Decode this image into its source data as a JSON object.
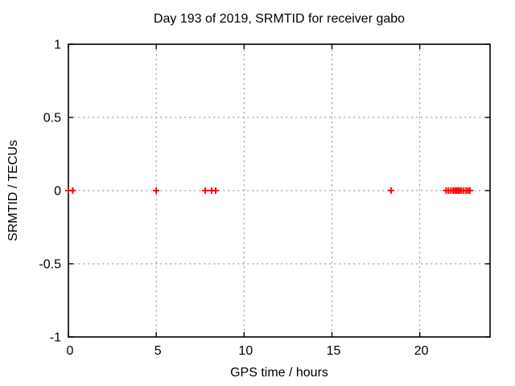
{
  "chart_data": {
    "type": "scatter",
    "title": "Day 193 of 2019, SRMTID for receiver gabo",
    "xlabel": "GPS time / hours",
    "ylabel": "SRMTID / TECUs",
    "xlim": [
      0,
      24
    ],
    "ylim": [
      -1,
      1
    ],
    "xticks": [
      0,
      5,
      10,
      15,
      20
    ],
    "yticks": [
      1,
      0.5,
      0,
      -0.5,
      -1
    ],
    "ytick_labels": [
      "1",
      "0.5",
      "0",
      "-0.5",
      "-1"
    ],
    "xtick_labels": [
      "0",
      "5",
      "10",
      "15",
      "20"
    ],
    "grid": true,
    "legend": "none",
    "marker": {
      "shape": "plus",
      "name": "plus-marker-icon",
      "size": 8,
      "stroke_width": 2
    },
    "series": [
      {
        "name": "SRMTID",
        "x": [
          0.0,
          0.25,
          5.0,
          7.79,
          8.15,
          8.38,
          18.37,
          21.5,
          21.63,
          21.77,
          21.9,
          22.0,
          22.09,
          22.18,
          22.27,
          22.37,
          22.5,
          22.64,
          22.75,
          22.86
        ],
        "y": [
          0,
          0,
          0,
          0,
          0,
          0,
          0,
          0,
          0,
          0,
          0,
          0,
          0,
          0,
          0,
          0,
          0,
          0,
          0,
          0
        ]
      }
    ],
    "colors": {
      "marker": "#ff0000",
      "grid": "#9a9a9a",
      "frame": "#000000",
      "text": "#000000",
      "background": "#ffffff"
    }
  }
}
